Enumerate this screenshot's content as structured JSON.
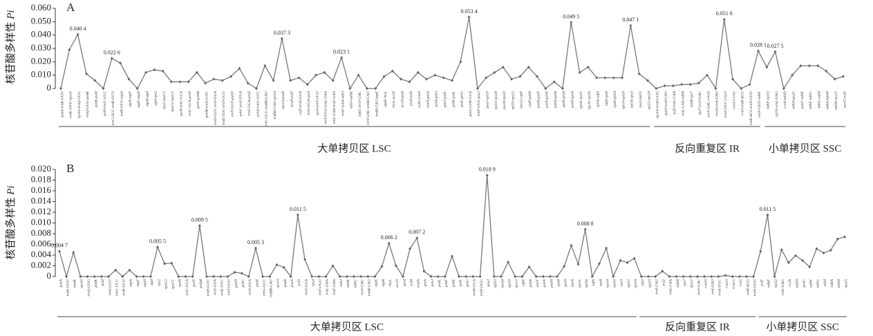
{
  "chart_data": [
    {
      "type": "line",
      "title": "A",
      "ylabel": "核苷酸多样性 ",
      "ylabel_italic": "Pi",
      "color": "#777777",
      "ylim": [
        0,
        0.06
      ],
      "yticks": [
        0,
        {
          "value": 0.01,
          "label": "0.010"
        },
        {
          "value": 0.02,
          "label": "0.020"
        },
        {
          "value": 0.03,
          "label": "0.030"
        },
        {
          "value": 0.04,
          "label": "0.040"
        },
        {
          "value": 0.05,
          "label": "0.050"
        },
        {
          "value": 0.06,
          "label": "0.060"
        }
      ],
      "categories": [
        "psbA-trnK-UUU",
        "trnK-UUU-rps16",
        "rps16-trnQ-UUG",
        "trnQ-UUG-psbK",
        "psbK-psbI",
        "psbI-trnG-UCC",
        "trnG-UCC-trnR-UCU",
        "trnR-UCU-atpA",
        "atpA-atpF",
        "atpF-atpH",
        "atpH-atpI",
        "atpI-rps2",
        "rps2-rpoC2",
        "rpoC2-rpoC1",
        "rpoB-trnC-GCA",
        "trnC-GCA-petN",
        "petN-psbM",
        "psbM-trnD-GUC",
        "trnD-GUC-trnY-GUA",
        "trnE-UUC-trnT-GGU",
        "trnT-GGU-psbD",
        "psbC-trnS-UGA",
        "trnS-UGA-psbZ",
        "psbZ-trnG-GCC",
        "trnG-GCC-trnfM-CAU",
        "trnfM-CAU-rps14",
        "rps14-psaB",
        "psaA-ycf3",
        "ycf3-trnS-GGA",
        "trnS-GGA-rps4",
        "rps4-trnT-UGU",
        "trnT-UGU-trnL-UAA",
        "trnL-UAA-trnF-GAA",
        "trnF-GAA-ndhJ",
        "ndhJ-ndhK",
        "ndhC-trnV-UAC",
        "trnV-UAC-trnM-CAU",
        "trnM-CAU-atpE",
        "atpB-rbcL",
        "rbcL-accD",
        "accD-psaI",
        "psaI-ycf4",
        "ycf4-cemA",
        "cemA-petA",
        "petA-psbJ",
        "psbJ-psbL",
        "psbE-petL",
        "petL-petG",
        "petG-trnW-CCA",
        "trnP-UGG-psaJ",
        "psaJ-rpl33",
        "rpl33-rps18",
        "rps18-rpl20",
        "rpl20-rps12",
        "rps12-clpP",
        "clpP-psbB",
        "psbB-psbT",
        "psbT-psbN",
        "psbH-petB",
        "petB-petD",
        "petD-rpoA",
        "rpoA-rps11",
        "rps11-rpl36",
        "rpl36-infA",
        "infA-rps8",
        "rps8-rpl14",
        "rpl14-rpl16",
        "rpl16-rps3",
        "rps3-rpl22",
        "rpl22-rps19",
        "rps19-trnH-GUG",
        "rpl23-trnI-CAU",
        "ycf2-trnL-CAA",
        "trnL-CAA-ndhB",
        "ndhB-rps7",
        "rps7-trnV-GAC",
        "trnV-GAC-rrn16",
        "rrn16-trnI-GAU",
        "trnA-UGC-rrn23",
        "rrn4.5-rrn5",
        "rrn5-trnR-ACG",
        "trnR-ACG-trnN-GUU",
        "trnN-GUU-ndhF",
        "ndhF-rpl32",
        "rpl32-trnL-UAG",
        "ccsA-ndhD",
        "ndhD-psaC",
        "psaC-ndhE",
        "ndhE-ndhG",
        "ndhG-ndhI",
        "ndhA-ndhH",
        "ndhH-rps15",
        "rps15-ycf1"
      ],
      "values": [
        0,
        0.029,
        0.0404,
        0.011,
        0.006,
        0,
        0.0226,
        0.019,
        0.007,
        0,
        0.012,
        0.014,
        0.013,
        0.005,
        0.005,
        0.005,
        0.012,
        0.004,
        0.007,
        0.006,
        0.009,
        0.015,
        0.004,
        0,
        0.017,
        0.006,
        0.0373,
        0.006,
        0.008,
        0.003,
        0.01,
        0.012,
        0.006,
        0.0231,
        0,
        0.01,
        0,
        0,
        0.009,
        0.013,
        0.007,
        0.005,
        0.012,
        0.007,
        0.01,
        0.008,
        0.006,
        0.02,
        0.0534,
        0,
        0.008,
        0.012,
        0.016,
        0.007,
        0.009,
        0.016,
        0.009,
        0,
        0.005,
        0,
        0.0495,
        0.012,
        0.016,
        0.008,
        0.008,
        0.008,
        0.008,
        0.0471,
        0.011,
        0.006,
        0,
        0.002,
        0.002,
        0.003,
        0.003,
        0.004,
        0.01,
        0,
        0.0516,
        0.007,
        0,
        0.003,
        0.0281,
        0.016,
        0.0275,
        0,
        0.01,
        0.017,
        0.017,
        0.017,
        0.013,
        0.007,
        0.009
      ],
      "value_labels": [
        null,
        null,
        "0.040 4",
        null,
        null,
        null,
        "0.022 6",
        null,
        null,
        null,
        null,
        null,
        null,
        null,
        null,
        null,
        null,
        null,
        null,
        null,
        null,
        null,
        null,
        null,
        null,
        null,
        "0.037 3",
        null,
        null,
        null,
        null,
        null,
        null,
        "0.023 1",
        null,
        null,
        null,
        null,
        null,
        null,
        null,
        null,
        null,
        null,
        null,
        null,
        null,
        null,
        "0.053 4",
        null,
        null,
        null,
        null,
        null,
        null,
        null,
        null,
        null,
        null,
        null,
        "0.049 5",
        null,
        null,
        null,
        null,
        null,
        null,
        "0.047 1",
        null,
        null,
        null,
        null,
        null,
        null,
        null,
        null,
        null,
        null,
        "0.051 6",
        null,
        null,
        null,
        "0.028 1",
        null,
        "0.027 5",
        null,
        null,
        null,
        null,
        null,
        null,
        null,
        null
      ],
      "regions": [
        {
          "label": "大单拷贝区 LSC",
          "from": 0,
          "to": 69
        },
        {
          "label": "反向重复区 IR",
          "from": 70,
          "to": 82
        },
        {
          "label": "小单拷贝区 SSC",
          "from": 83,
          "to": 92
        }
      ]
    },
    {
      "type": "line",
      "title": "B",
      "ylabel": "核苷酸多样性 ",
      "ylabel_italic": "Pi",
      "color": "#777777",
      "ylim": [
        0,
        0.02
      ],
      "yticks": [
        0,
        {
          "value": 0.002,
          "label": "0.002"
        },
        {
          "value": 0.004,
          "label": "0.004"
        },
        {
          "value": 0.006,
          "label": "0.006"
        },
        {
          "value": 0.008,
          "label": "0.008"
        },
        {
          "value": 0.01,
          "label": "0.010"
        },
        {
          "value": 0.012,
          "label": "0.012"
        },
        {
          "value": 0.014,
          "label": "0.014"
        },
        {
          "value": 0.016,
          "label": "0.016"
        },
        {
          "value": 0.018,
          "label": "0.018"
        },
        {
          "value": 0.02,
          "label": "0.020"
        }
      ],
      "categories": [
        "psbA",
        "trnK-UUU",
        "matK",
        "rps16",
        "trnQ-UUG",
        "psbK",
        "psbI",
        "trnS-GCU",
        "trnG-UCC",
        "trnR-UCU",
        "atpA",
        "atpF",
        "atpH",
        "atpI",
        "rps2",
        "rpoC2",
        "rpoC1",
        "rpoB",
        "trnC-GCA",
        "petN",
        "psbM",
        "trnD-GUC",
        "trnY-GUA",
        "trnE-UUC",
        "trnT-GGU",
        "psbD",
        "psbC",
        "trnS-UGA",
        "psbZ",
        "trnG-GCC",
        "trnfM-CAU",
        "rps14",
        "psaB",
        "psaA",
        "ycf3",
        "trnS-GGA",
        "rps4",
        "trnT-UGU",
        "trnL-UAA",
        "trnF-GAA",
        "ndhJ",
        "ndhK",
        "ndhC",
        "trnV-UAC",
        "trnM-CAU",
        "atpE",
        "atpB",
        "rbcL",
        "accD",
        "psaI",
        "ycf4",
        "cemA",
        "petA",
        "psbJ",
        "psbL",
        "psbF",
        "psbE",
        "petL",
        "petG",
        "trnW-CCA",
        "trnP-UGG",
        "psaJ",
        "rpl33",
        "rps18",
        "rpl20",
        "rps12",
        "clpP",
        "psbB",
        "psbT",
        "psbN",
        "psbH",
        "petB",
        "petD",
        "rpoA",
        "rps11",
        "rpl36",
        "infA",
        "rps8",
        "rpl14",
        "rpl16",
        "rps3",
        "rpl22",
        "rps19",
        "rpl2",
        "rpl23",
        "trnI-CAU",
        "ycf2",
        "trnL-CAA",
        "ndhB",
        "rps7",
        "rps12",
        "trnV-GAC",
        "rrn16",
        "trnI-GAU",
        "trnA-UGC",
        "rrn23",
        "rrn4.5",
        "rrn5",
        "trnR-ACG",
        "trnN-GUU",
        "ycf1",
        "ndhF",
        "rpl32",
        "trnL-UAG",
        "ccsA",
        "ndhD",
        "psaC",
        "ndhE",
        "ndhG",
        "ndhI",
        "ndhA",
        "ndhH",
        "rps15"
      ],
      "values": [
        0.0047,
        0,
        0.0045,
        0,
        0,
        0,
        0,
        0,
        0.0012,
        0,
        0.0012,
        0,
        0,
        0,
        0.0055,
        0.0024,
        0.0025,
        0,
        0,
        0,
        0.0095,
        0,
        0,
        0,
        0,
        0.0008,
        0.0006,
        0,
        0.0053,
        0,
        0,
        0.0022,
        0.0017,
        0,
        0.0115,
        0.0032,
        0,
        0,
        0,
        0.002,
        0,
        0,
        0,
        0,
        0,
        0,
        0.0019,
        0.0062,
        0.002,
        0,
        0.0052,
        0.0072,
        0.001,
        0,
        0,
        0,
        0.0038,
        0,
        0,
        0,
        0,
        0.0189,
        0,
        0,
        0.0027,
        0,
        0,
        0.0018,
        0,
        0,
        0,
        0,
        0.0019,
        0.0058,
        0.0023,
        0.0088,
        0,
        0.0024,
        0.0053,
        0,
        0.003,
        0.0026,
        0.0034,
        0,
        0,
        0,
        0.001,
        0,
        0,
        0,
        0,
        0,
        0,
        0,
        0,
        0.0002,
        0,
        0,
        0,
        0,
        0.0047,
        0.0115,
        0,
        0.005,
        0.0026,
        0.0039,
        0.003,
        0.0018,
        0.0052,
        0.0044,
        0.0049,
        0.007,
        0.0074
      ],
      "value_labels": [
        "0.004 7",
        null,
        null,
        null,
        null,
        null,
        null,
        null,
        null,
        null,
        null,
        null,
        null,
        null,
        "0.005 5",
        null,
        null,
        null,
        null,
        null,
        "0.009 5",
        null,
        null,
        null,
        null,
        null,
        null,
        null,
        "0.005 3",
        null,
        null,
        null,
        null,
        null,
        "0.011 5",
        null,
        null,
        null,
        null,
        null,
        null,
        null,
        null,
        null,
        null,
        null,
        null,
        "0.006 2",
        null,
        null,
        null,
        "0.007 2",
        null,
        null,
        null,
        null,
        null,
        null,
        null,
        null,
        null,
        "0.018 9",
        null,
        null,
        null,
        null,
        null,
        null,
        null,
        null,
        null,
        null,
        null,
        null,
        null,
        "0.008 8",
        null,
        null,
        null,
        null,
        null,
        null,
        null,
        null,
        null,
        null,
        null,
        null,
        null,
        null,
        null,
        null,
        null,
        null,
        null,
        null,
        null,
        null,
        null,
        null,
        null,
        "0.011 5",
        null,
        null,
        null,
        null,
        null,
        null,
        null,
        null,
        null,
        null,
        null
      ],
      "regions": [
        {
          "label": "大单拷贝区 LSC",
          "from": 0,
          "to": 82
        },
        {
          "label": "反向重复区 IR",
          "from": 83,
          "to": 99
        },
        {
          "label": "小单拷贝区 SSC",
          "from": 100,
          "to": 112
        }
      ]
    }
  ]
}
